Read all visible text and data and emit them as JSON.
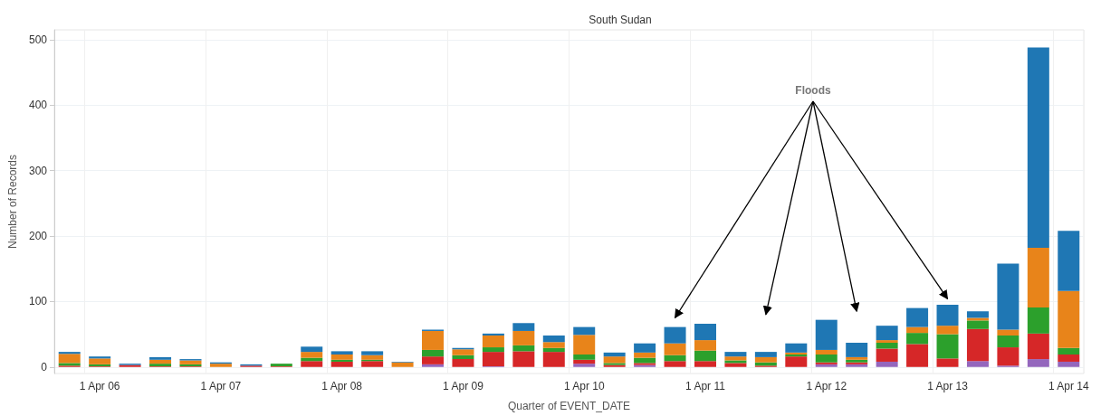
{
  "chart_data": {
    "type": "bar",
    "title": "South Sudan",
    "xlabel": "Quarter of EVENT_DATE",
    "ylabel": "Number of Records",
    "stacked": true,
    "categories": [
      null,
      "1 Apr 06",
      null,
      null,
      null,
      "1 Apr 07",
      null,
      null,
      null,
      "1 Apr 08",
      null,
      null,
      null,
      "1 Apr 09",
      null,
      null,
      null,
      "1 Apr 10",
      null,
      null,
      null,
      "1 Apr 11",
      null,
      null,
      null,
      "1 Apr 12",
      null,
      null,
      null,
      "1 Apr 13",
      null,
      null,
      null,
      "1 Apr 14"
    ],
    "series": [
      {
        "color": "#9467bd",
        "values": [
          0,
          0,
          0,
          0,
          0,
          0,
          0,
          0,
          0,
          0,
          0,
          0,
          4,
          0,
          1,
          0,
          0,
          5,
          0,
          3,
          0,
          0,
          0,
          0,
          0,
          4,
          4,
          8,
          0,
          0,
          9,
          2,
          12,
          8
        ]
      },
      {
        "color": "#d62728",
        "values": [
          2,
          1,
          3,
          1,
          1,
          0,
          2,
          1,
          9,
          8,
          9,
          0,
          12,
          12,
          22,
          24,
          23,
          6,
          3,
          3,
          9,
          9,
          6,
          2,
          16,
          3,
          3,
          20,
          35,
          13,
          49,
          28,
          39,
          11
        ]
      },
      {
        "color": "#2ca02c",
        "values": [
          4,
          3,
          0,
          4,
          3,
          0,
          0,
          4,
          5,
          3,
          2,
          0,
          10,
          6,
          7,
          9,
          6,
          8,
          3,
          8,
          9,
          16,
          4,
          5,
          3,
          12,
          4,
          9,
          17,
          37,
          13,
          18,
          40,
          10
        ]
      },
      {
        "color": "#e8841a",
        "values": [
          14,
          9,
          0,
          6,
          6,
          5,
          0,
          0,
          9,
          8,
          7,
          7,
          29,
          9,
          18,
          22,
          9,
          30,
          10,
          8,
          18,
          16,
          6,
          8,
          3,
          7,
          4,
          4,
          9,
          13,
          4,
          9,
          91,
          87
        ]
      },
      {
        "color": "#1f77b4",
        "values": [
          3,
          3,
          2,
          4,
          2,
          2,
          2,
          0,
          8,
          5,
          6,
          1,
          2,
          2,
          3,
          12,
          10,
          12,
          6,
          14,
          25,
          25,
          7,
          8,
          14,
          46,
          22,
          22,
          29,
          32,
          10,
          101,
          306,
          92
        ]
      }
    ],
    "ylim": [
      -10,
      515
    ],
    "yticks": [
      0,
      100,
      200,
      300,
      400,
      500
    ],
    "grid": true,
    "annotations": [
      "Floods"
    ]
  }
}
